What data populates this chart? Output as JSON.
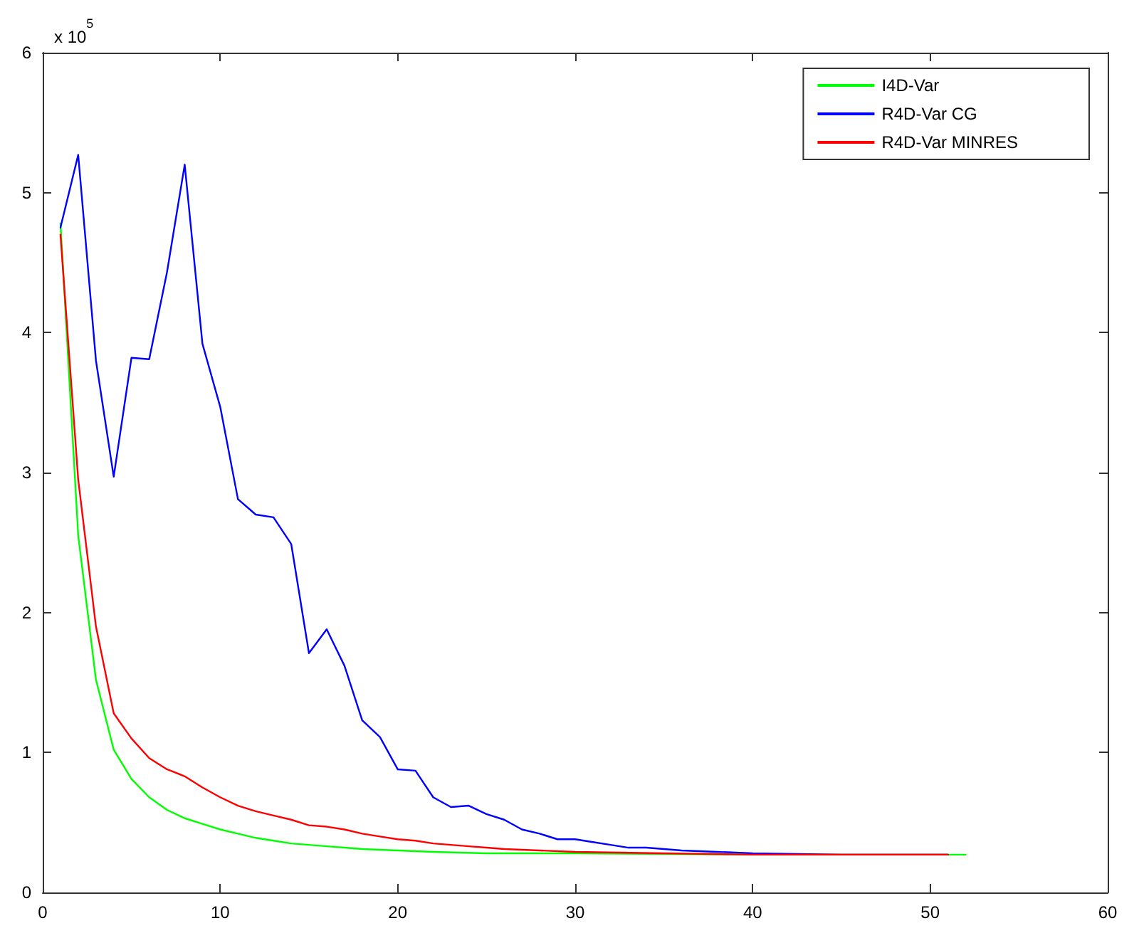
{
  "chart_data": {
    "type": "line",
    "xlim": [
      0,
      60
    ],
    "xticks": [
      0,
      10,
      20,
      30,
      40,
      50,
      60
    ],
    "ylim": [
      0,
      6
    ],
    "yticks": [
      0,
      1,
      2,
      3,
      4,
      5,
      6
    ],
    "annotations": [
      "x 10$^{5}$"
    ],
    "grid": false,
    "legend": "top right",
    "marker": "none",
    "line_style": "solid",
    "series": [
      {
        "name": "I4D-Var",
        "color": "#00ff00",
        "x": [
          1,
          2,
          3,
          4,
          5,
          6,
          7,
          8,
          9,
          10,
          11,
          12,
          13,
          14,
          15,
          16,
          17,
          18,
          20,
          22,
          25,
          30,
          40,
          52
        ],
        "values": [
          4.78,
          2.55,
          1.52,
          1.02,
          0.81,
          0.68,
          0.59,
          0.53,
          0.49,
          0.45,
          0.42,
          0.39,
          0.37,
          0.35,
          0.34,
          0.33,
          0.32,
          0.31,
          0.3,
          0.29,
          0.28,
          0.28,
          0.27,
          0.27
        ]
      },
      {
        "name": "R4D-Var CG",
        "color": "#0000ff",
        "x": [
          1,
          2,
          3,
          4,
          5,
          6,
          7,
          8,
          9,
          10,
          11,
          12,
          13,
          14,
          15,
          16,
          17,
          18,
          19,
          20,
          21,
          22,
          23,
          24,
          25,
          26,
          27,
          28,
          29,
          30,
          31,
          32,
          33,
          34,
          35,
          36,
          38,
          40,
          45,
          51
        ],
        "values": [
          4.75,
          5.27,
          3.8,
          2.97,
          3.82,
          3.81,
          4.43,
          5.2,
          3.92,
          3.47,
          2.81,
          2.7,
          2.68,
          2.49,
          1.71,
          1.88,
          1.62,
          1.23,
          1.11,
          0.88,
          0.87,
          0.68,
          0.61,
          0.62,
          0.56,
          0.52,
          0.45,
          0.42,
          0.38,
          0.38,
          0.36,
          0.34,
          0.32,
          0.32,
          0.31,
          0.3,
          0.29,
          0.28,
          0.27,
          0.27
        ]
      },
      {
        "name": "R4D-Var MINRES",
        "color": "#ff0000",
        "x": [
          1,
          2,
          3,
          4,
          5,
          6,
          7,
          8,
          9,
          10,
          11,
          12,
          13,
          14,
          15,
          16,
          17,
          18,
          19,
          20,
          21,
          22,
          23,
          24,
          25,
          26,
          28,
          30,
          35,
          40,
          51
        ],
        "values": [
          4.7,
          2.95,
          1.9,
          1.28,
          1.1,
          0.96,
          0.88,
          0.83,
          0.75,
          0.68,
          0.62,
          0.58,
          0.55,
          0.52,
          0.48,
          0.47,
          0.45,
          0.42,
          0.4,
          0.38,
          0.37,
          0.35,
          0.34,
          0.33,
          0.32,
          0.31,
          0.3,
          0.29,
          0.28,
          0.27,
          0.27
        ]
      }
    ]
  }
}
